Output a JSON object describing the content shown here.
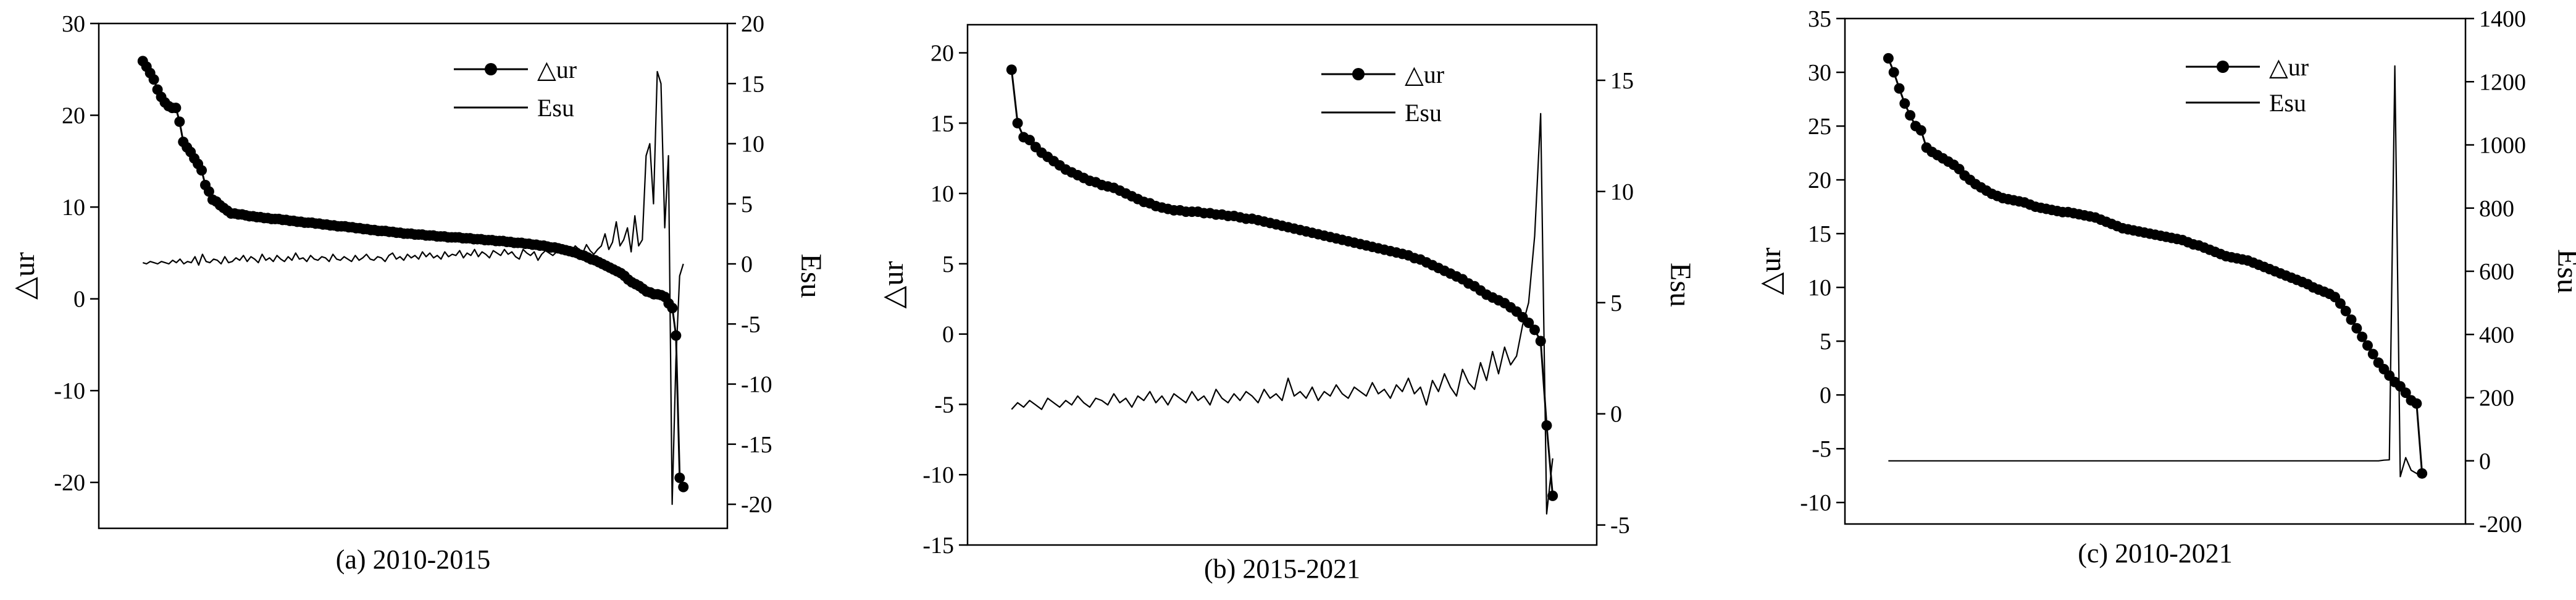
{
  "chart_data": [
    {
      "type": "line",
      "caption": "(a) 2010-2015",
      "ylabel_left": "△ur",
      "ylabel_right": "Esu",
      "ylim_left": [
        -25,
        30
      ],
      "yticks_left": [
        -20,
        -10,
        0,
        10,
        20,
        30
      ],
      "ylim_right": [
        -22,
        20
      ],
      "yticks_right": [
        -20,
        -15,
        -10,
        -5,
        0,
        5,
        10,
        15,
        20
      ],
      "legend_position": "top-right",
      "grid": false,
      "series": [
        {
          "name": "△ur",
          "axis": "left",
          "marker": "circle",
          "y": [
            25.9,
            25.3,
            24.6,
            23.9,
            22.8,
            22.0,
            21.4,
            21.0,
            20.8,
            20.8,
            19.3,
            17.1,
            16.5,
            16.0,
            15.3,
            14.7,
            14.0,
            12.4,
            11.7,
            10.8,
            10.6,
            10.2,
            9.9,
            9.6,
            9.3,
            9.3,
            9.2,
            9.2,
            9.1,
            9.0,
            9.0,
            8.9,
            8.9,
            8.8,
            8.8,
            8.7,
            8.7,
            8.7,
            8.6,
            8.6,
            8.5,
            8.5,
            8.4,
            8.4,
            8.3,
            8.3,
            8.3,
            8.2,
            8.2,
            8.1,
            8.1,
            8.0,
            8.0,
            7.9,
            7.9,
            7.9,
            7.8,
            7.8,
            7.7,
            7.7,
            7.6,
            7.6,
            7.5,
            7.5,
            7.4,
            7.4,
            7.4,
            7.3,
            7.3,
            7.2,
            7.2,
            7.1,
            7.1,
            7.1,
            7.0,
            7.0,
            7.0,
            6.9,
            6.9,
            6.9,
            6.8,
            6.8,
            6.8,
            6.7,
            6.7,
            6.7,
            6.7,
            6.6,
            6.6,
            6.6,
            6.5,
            6.5,
            6.5,
            6.4,
            6.4,
            6.4,
            6.3,
            6.3,
            6.3,
            6.2,
            6.2,
            6.1,
            6.1,
            6.1,
            6.0,
            6.0,
            5.9,
            5.9,
            5.8,
            5.8,
            5.7,
            5.6,
            5.6,
            5.5,
            5.4,
            5.3,
            5.2,
            5.1,
            5.0,
            4.8,
            4.7,
            4.5,
            4.3,
            4.2,
            4.0,
            3.8,
            3.6,
            3.4,
            3.2,
            3.0,
            2.8,
            2.5,
            2.1,
            1.8,
            1.6,
            1.4,
            1.1,
            0.8,
            0.7,
            0.5,
            0.5,
            0.4,
            0.2,
            -0.5,
            -1.0,
            -4.0,
            -19.5,
            -20.5
          ]
        },
        {
          "name": "Esu",
          "axis": "right",
          "marker": "none",
          "y": [
            0.1,
            0.0,
            0.2,
            0.1,
            0.0,
            0.2,
            0.1,
            0.0,
            0.3,
            0.1,
            0.4,
            0.0,
            0.2,
            0.1,
            0.6,
            -0.1,
            0.8,
            0.2,
            0.1,
            0.4,
            0.3,
            0.0,
            0.6,
            0.1,
            0.2,
            0.5,
            0.3,
            0.7,
            0.2,
            0.6,
            0.4,
            0.1,
            0.8,
            0.3,
            0.5,
            0.2,
            0.7,
            0.4,
            0.2,
            0.6,
            0.3,
            0.9,
            0.4,
            0.5,
            0.2,
            0.7,
            0.4,
            0.3,
            0.6,
            0.5,
            0.2,
            0.8,
            0.4,
            0.3,
            0.6,
            0.4,
            0.2,
            0.7,
            0.3,
            0.5,
            0.8,
            0.4,
            0.3,
            0.6,
            0.5,
            0.2,
            0.7,
            0.9,
            0.4,
            0.6,
            0.3,
            0.8,
            0.5,
            0.7,
            0.4,
            1.0,
            0.6,
            0.9,
            0.5,
            0.7,
            0.4,
            1.0,
            0.6,
            0.8,
            0.7,
            1.1,
            0.5,
            0.9,
            0.7,
            1.2,
            0.6,
            1.0,
            0.8,
            0.5,
            1.1,
            0.9,
            0.7,
            1.2,
            0.8,
            1.0,
            0.6,
            0.4,
            1.2,
            0.9,
            0.7,
            1.0,
            0.3,
            0.8,
            1.1,
            0.9,
            0.7,
            1.0,
            1.2,
            0.8,
            1.3,
            1.0,
            1.5,
            1.2,
            0.9,
            1.6,
            1.1,
            0.8,
            1.2,
            1.5,
            2.5,
            1.2,
            1.8,
            3.5,
            1.5,
            2.0,
            3.0,
            1.0,
            4.0,
            1.5,
            2.0,
            9.0,
            10.0,
            5.0,
            16.0,
            15.0,
            3.0,
            9.0,
            -20.0,
            -8.0,
            -1.0,
            0.0
          ]
        }
      ]
    },
    {
      "type": "line",
      "caption": "(b) 2015-2021",
      "ylabel_left": "△ur",
      "ylabel_right": "Esu",
      "ylim_left": [
        -15,
        22
      ],
      "yticks_left": [
        -15,
        -10,
        -5,
        0,
        5,
        10,
        15,
        20
      ],
      "ylim_right": [
        -5.9,
        17.5
      ],
      "yticks_right": [
        -5,
        0,
        5,
        10,
        15
      ],
      "legend_position": "top-right",
      "grid": false,
      "series": [
        {
          "name": "△ur",
          "axis": "left",
          "marker": "circle",
          "y": [
            18.8,
            15.0,
            14.0,
            13.8,
            13.3,
            12.9,
            12.6,
            12.3,
            12.0,
            11.7,
            11.5,
            11.3,
            11.1,
            10.9,
            10.8,
            10.6,
            10.5,
            10.4,
            10.2,
            10.0,
            9.8,
            9.6,
            9.4,
            9.3,
            9.1,
            9.0,
            8.9,
            8.8,
            8.8,
            8.7,
            8.7,
            8.7,
            8.6,
            8.6,
            8.5,
            8.5,
            8.4,
            8.4,
            8.3,
            8.2,
            8.2,
            8.1,
            8.0,
            7.9,
            7.8,
            7.7,
            7.6,
            7.5,
            7.4,
            7.3,
            7.2,
            7.1,
            7.0,
            6.9,
            6.8,
            6.7,
            6.6,
            6.5,
            6.4,
            6.3,
            6.2,
            6.1,
            6.0,
            5.9,
            5.8,
            5.7,
            5.6,
            5.4,
            5.3,
            5.1,
            4.9,
            4.7,
            4.5,
            4.3,
            4.1,
            3.9,
            3.6,
            3.4,
            3.1,
            2.8,
            2.6,
            2.4,
            2.2,
            1.9,
            1.6,
            1.2,
            0.8,
            0.3,
            -0.5,
            -6.5,
            -11.5
          ]
        },
        {
          "name": "Esu",
          "axis": "right",
          "marker": "none",
          "y": [
            0.2,
            0.5,
            0.3,
            0.6,
            0.4,
            0.2,
            0.7,
            0.5,
            0.3,
            0.6,
            0.4,
            0.8,
            0.5,
            0.3,
            0.7,
            0.6,
            0.4,
            0.9,
            0.5,
            0.7,
            0.3,
            0.8,
            0.6,
            1.0,
            0.5,
            0.8,
            0.4,
            0.9,
            0.7,
            0.5,
            1.0,
            0.6,
            0.8,
            0.4,
            1.1,
            0.7,
            0.5,
            0.9,
            0.6,
            1.0,
            0.8,
            0.5,
            1.1,
            0.7,
            0.9,
            0.6,
            1.6,
            0.8,
            1.0,
            0.7,
            1.2,
            0.6,
            1.0,
            0.8,
            1.3,
            0.9,
            0.7,
            1.2,
            1.0,
            0.8,
            1.4,
            0.9,
            1.1,
            0.7,
            1.3,
            1.0,
            1.6,
            0.9,
            1.2,
            0.4,
            1.5,
            1.0,
            1.8,
            1.2,
            0.8,
            2.0,
            1.4,
            1.1,
            2.3,
            1.5,
            2.8,
            1.8,
            3.0,
            2.2,
            2.6,
            4.0,
            5.0,
            8.0,
            13.5,
            -4.5,
            -2.0
          ]
        }
      ]
    },
    {
      "type": "line",
      "caption": "(c) 2010-2021",
      "ylabel_left": "△ur",
      "ylabel_right": "Esu",
      "ylim_left": [
        -12,
        35
      ],
      "yticks_left": [
        -10,
        -5,
        0,
        5,
        10,
        15,
        20,
        25,
        30,
        35
      ],
      "ylim_right": [
        -200,
        1400
      ],
      "yticks_right": [
        -200,
        0,
        200,
        400,
        600,
        800,
        1000,
        1200,
        1400
      ],
      "legend_position": "top-right",
      "grid": false,
      "series": [
        {
          "name": "△ur",
          "axis": "left",
          "marker": "circle",
          "y": [
            31.3,
            30.0,
            28.5,
            27.1,
            26.0,
            25.0,
            24.6,
            23.0,
            22.6,
            22.3,
            22.0,
            21.7,
            21.4,
            21.0,
            20.4,
            20.0,
            19.6,
            19.3,
            19.0,
            18.7,
            18.5,
            18.3,
            18.2,
            18.1,
            18.0,
            17.9,
            17.7,
            17.5,
            17.4,
            17.3,
            17.2,
            17.1,
            17.0,
            17.0,
            16.9,
            16.8,
            16.7,
            16.6,
            16.5,
            16.3,
            16.1,
            15.9,
            15.7,
            15.5,
            15.4,
            15.3,
            15.2,
            15.1,
            15.0,
            14.9,
            14.8,
            14.7,
            14.6,
            14.5,
            14.4,
            14.2,
            14.0,
            13.9,
            13.7,
            13.5,
            13.3,
            13.1,
            12.9,
            12.8,
            12.7,
            12.6,
            12.5,
            12.3,
            12.1,
            11.9,
            11.7,
            11.5,
            11.3,
            11.1,
            10.9,
            10.7,
            10.5,
            10.3,
            10.0,
            9.8,
            9.6,
            9.4,
            9.1,
            8.5,
            7.8,
            7.0,
            6.2,
            5.4,
            4.6,
            3.8,
            3.0,
            2.4,
            1.8,
            1.2,
            0.8,
            0.2,
            -0.5,
            -0.8,
            -7.3
          ]
        },
        {
          "name": "Esu",
          "axis": "right",
          "marker": "none",
          "y": [
            0,
            0,
            0,
            0,
            0,
            0,
            0,
            0,
            0,
            0,
            0,
            0,
            0,
            0,
            0,
            0,
            0,
            0,
            0,
            0,
            0,
            0,
            0,
            0,
            0,
            0,
            0,
            0,
            0,
            0,
            0,
            0,
            0,
            0,
            0,
            0,
            0,
            0,
            0,
            0,
            0,
            0,
            0,
            0,
            0,
            0,
            0,
            0,
            0,
            0,
            0,
            0,
            0,
            0,
            0,
            0,
            0,
            0,
            0,
            0,
            0,
            0,
            0,
            0,
            0,
            0,
            0,
            0,
            0,
            0,
            0,
            0,
            0,
            0,
            0,
            0,
            0,
            0,
            0,
            0,
            0,
            0,
            0,
            0,
            0,
            0,
            0,
            0,
            0,
            0,
            0,
            2,
            3,
            1250,
            -50,
            10,
            -30,
            -40,
            -50
          ]
        }
      ]
    }
  ]
}
